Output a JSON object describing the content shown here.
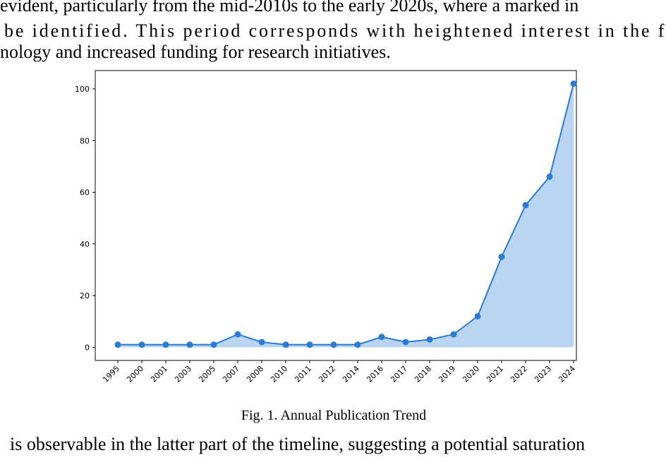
{
  "paragraph_above": {
    "lines": [
      "evident, particularly from the mid-2010s to the early 2020s, where a marked in",
      "be identified. This period corresponds with heightened interest in the fie",
      "nology and increased funding for research initiatives."
    ]
  },
  "chart_data": {
    "type": "line",
    "area": true,
    "categories": [
      "1995",
      "2000",
      "2001",
      "2003",
      "2005",
      "2007",
      "2008",
      "2010",
      "2011",
      "2012",
      "2014",
      "2016",
      "2017",
      "2018",
      "2019",
      "2020",
      "2021",
      "2022",
      "2023",
      "2024"
    ],
    "values": [
      1,
      1,
      1,
      1,
      1,
      5,
      2,
      1,
      1,
      1,
      1,
      4,
      2,
      3,
      5,
      12,
      35,
      55,
      66,
      102
    ],
    "color": "#2a7bd3",
    "fill_color": "#b9d5f2",
    "ylim": [
      -5.1,
      107.1
    ],
    "yticks": [
      0,
      20,
      40,
      60,
      80,
      100
    ],
    "grid": false
  },
  "caption": "Fig. 1. Annual Publication Trend",
  "paragraph_below": {
    "lines": [
      "is observable in the latter part of the timeline, suggesting a potential saturation"
    ]
  }
}
